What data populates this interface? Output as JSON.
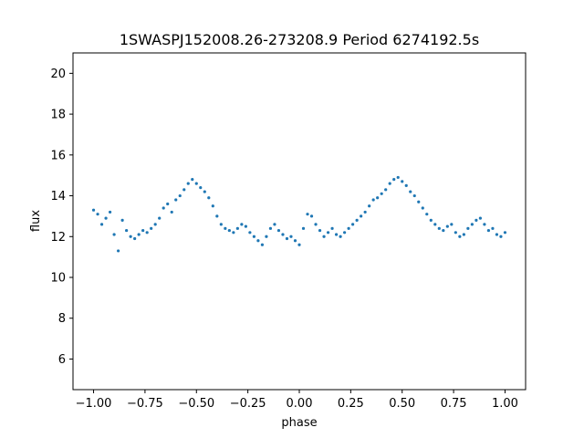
{
  "chart_data": {
    "type": "scatter",
    "title": "1SWASPJ152008.26-273208.9 Period 6274192.5s",
    "xlabel": "phase",
    "ylabel": "flux",
    "xlim": [
      -1.1,
      1.1
    ],
    "ylim": [
      4.5,
      21.0
    ],
    "xticks": [
      -1.0,
      -0.75,
      -0.5,
      -0.25,
      0.0,
      0.25,
      0.5,
      0.75,
      1.0
    ],
    "xtick_labels": [
      "−1.00",
      "−0.75",
      "−0.50",
      "−0.25",
      "0.00",
      "0.25",
      "0.50",
      "0.75",
      "1.00"
    ],
    "yticks": [
      6,
      8,
      10,
      12,
      14,
      16,
      18,
      20
    ],
    "ytick_labels": [
      "6",
      "8",
      "10",
      "12",
      "14",
      "16",
      "18",
      "20"
    ],
    "grid": false,
    "marker_color": "#1f77b4",
    "series": [
      {
        "points": [
          [
            -1.0,
            13.3
          ],
          [
            -0.98,
            13.1
          ],
          [
            -0.96,
            12.6
          ],
          [
            -0.94,
            12.9
          ],
          [
            -0.92,
            13.2
          ],
          [
            -0.9,
            12.1
          ],
          [
            -0.88,
            11.3
          ],
          [
            -0.86,
            12.8
          ],
          [
            -0.84,
            12.3
          ],
          [
            -0.82,
            12.0
          ],
          [
            -0.8,
            11.9
          ],
          [
            -0.78,
            12.1
          ],
          [
            -0.76,
            12.3
          ],
          [
            -0.74,
            12.2
          ],
          [
            -0.72,
            12.4
          ],
          [
            -0.7,
            12.6
          ],
          [
            -0.68,
            12.9
          ],
          [
            -0.66,
            13.4
          ],
          [
            -0.64,
            13.6
          ],
          [
            -0.62,
            13.2
          ],
          [
            -0.6,
            13.8
          ],
          [
            -0.58,
            14.0
          ],
          [
            -0.56,
            14.3
          ],
          [
            -0.54,
            14.6
          ],
          [
            -0.52,
            14.8
          ],
          [
            -0.5,
            14.6
          ],
          [
            -0.48,
            14.4
          ],
          [
            -0.46,
            14.2
          ],
          [
            -0.44,
            13.9
          ],
          [
            -0.42,
            13.5
          ],
          [
            -0.4,
            13.0
          ],
          [
            -0.38,
            12.6
          ],
          [
            -0.36,
            12.4
          ],
          [
            -0.34,
            12.3
          ],
          [
            -0.32,
            12.2
          ],
          [
            -0.3,
            12.4
          ],
          [
            -0.28,
            12.6
          ],
          [
            -0.26,
            12.5
          ],
          [
            -0.24,
            12.2
          ],
          [
            -0.22,
            12.0
          ],
          [
            -0.2,
            11.8
          ],
          [
            -0.18,
            11.6
          ],
          [
            -0.16,
            12.0
          ],
          [
            -0.14,
            12.4
          ],
          [
            -0.12,
            12.6
          ],
          [
            -0.1,
            12.3
          ],
          [
            -0.08,
            12.1
          ],
          [
            -0.06,
            11.9
          ],
          [
            -0.04,
            12.0
          ],
          [
            -0.02,
            11.8
          ],
          [
            0.0,
            11.6
          ],
          [
            0.02,
            12.4
          ],
          [
            0.04,
            13.1
          ],
          [
            0.06,
            13.0
          ],
          [
            0.08,
            12.6
          ],
          [
            0.1,
            12.3
          ],
          [
            0.12,
            12.0
          ],
          [
            0.14,
            12.2
          ],
          [
            0.16,
            12.4
          ],
          [
            0.18,
            12.1
          ],
          [
            0.2,
            12.0
          ],
          [
            0.22,
            12.2
          ],
          [
            0.24,
            12.4
          ],
          [
            0.26,
            12.6
          ],
          [
            0.28,
            12.8
          ],
          [
            0.3,
            13.0
          ],
          [
            0.32,
            13.2
          ],
          [
            0.34,
            13.5
          ],
          [
            0.36,
            13.8
          ],
          [
            0.38,
            13.9
          ],
          [
            0.4,
            14.1
          ],
          [
            0.42,
            14.3
          ],
          [
            0.44,
            14.6
          ],
          [
            0.46,
            14.8
          ],
          [
            0.48,
            14.9
          ],
          [
            0.5,
            14.7
          ],
          [
            0.52,
            14.5
          ],
          [
            0.54,
            14.2
          ],
          [
            0.56,
            14.0
          ],
          [
            0.58,
            13.7
          ],
          [
            0.6,
            13.4
          ],
          [
            0.62,
            13.1
          ],
          [
            0.64,
            12.8
          ],
          [
            0.66,
            12.6
          ],
          [
            0.68,
            12.4
          ],
          [
            0.7,
            12.3
          ],
          [
            0.72,
            12.5
          ],
          [
            0.74,
            12.6
          ],
          [
            0.76,
            12.2
          ],
          [
            0.78,
            12.0
          ],
          [
            0.8,
            12.1
          ],
          [
            0.82,
            12.4
          ],
          [
            0.84,
            12.6
          ],
          [
            0.86,
            12.8
          ],
          [
            0.88,
            12.9
          ],
          [
            0.9,
            12.6
          ],
          [
            0.92,
            12.3
          ],
          [
            0.94,
            12.4
          ],
          [
            0.96,
            12.1
          ],
          [
            0.98,
            12.0
          ],
          [
            1.0,
            12.2
          ]
        ]
      }
    ]
  }
}
